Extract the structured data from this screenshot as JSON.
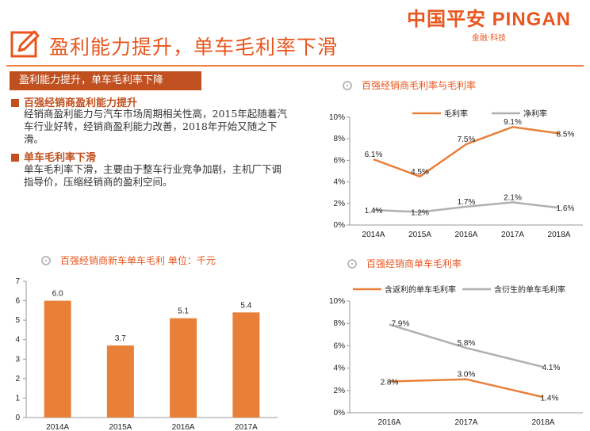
{
  "brand": {
    "logo_text": "中国平安 PINGAN",
    "logo_sub": "金融·科技"
  },
  "page_title": "盈利能力提升，单车毛利率下滑",
  "section_banner": "盈利能力提升，单车毛利率下降",
  "bullets": [
    {
      "heading": "百强经销商盈利能力提升",
      "body": "经销商盈利能力与汽车市场周期相关性高，2015年起随着汽车行业好转，经销商盈利能力改善，2018年开始又随之下滑。"
    },
    {
      "heading": "单车毛利率下滑",
      "body": "单车毛利率下滑，主要由于整车行业竞争加剧，主机厂下调指导价，压缩经销商的盈利空间。"
    }
  ],
  "colors": {
    "accent": "#e8561e",
    "orange_series": "#e8803a",
    "gray_series": "#b0b0b0",
    "bar": "#e8803a",
    "banner": "#c0501f"
  },
  "chart_data": [
    {
      "type": "line",
      "title": "百强经销商毛利率与毛利率",
      "categories": [
        "2014A",
        "2015A",
        "2016A",
        "2017A",
        "2018A"
      ],
      "ylim": [
        0,
        10
      ],
      "y_ticks": [
        "0%",
        "2%",
        "4%",
        "6%",
        "8%",
        "10%"
      ],
      "legend_position": "top",
      "series": [
        {
          "name": "毛利率",
          "values": [
            6.1,
            4.5,
            7.5,
            9.1,
            8.5
          ],
          "labels": [
            "6.1%",
            "4.5%",
            "7.5%",
            "9.1%",
            "8.5%"
          ]
        },
        {
          "name": "净利率",
          "values": [
            1.4,
            1.2,
            1.7,
            2.1,
            1.6
          ],
          "labels": [
            "1.4%",
            "1.2%",
            "1.7%",
            "2.1%",
            "1.6%"
          ]
        }
      ]
    },
    {
      "type": "bar",
      "title": "百强经销商新车单车毛利 单位：千元",
      "categories": [
        "2014A",
        "2015A",
        "2016A",
        "2017A"
      ],
      "values": [
        6.0,
        3.7,
        5.1,
        5.4
      ],
      "labels": [
        "6.0",
        "3.7",
        "5.1",
        "5.4"
      ],
      "ylim": [
        0,
        7
      ],
      "y_ticks": [
        "0",
        "1",
        "2",
        "3",
        "4",
        "5",
        "6",
        "7"
      ]
    },
    {
      "type": "line",
      "title": "百强经销商单车毛利率",
      "categories": [
        "2016A",
        "2017A",
        "2018A"
      ],
      "ylim": [
        0,
        10
      ],
      "y_ticks": [
        "0%",
        "2%",
        "4%",
        "6%",
        "8%",
        "10%"
      ],
      "legend_position": "top",
      "series": [
        {
          "name": "含返利的单车毛利率",
          "values": [
            2.8,
            3.0,
            1.4
          ],
          "labels": [
            "2.8%",
            "3.0%",
            "1.4%"
          ]
        },
        {
          "name": "含衍生的单车毛利率",
          "values": [
            7.9,
            5.8,
            4.1
          ],
          "labels": [
            "7.9%",
            "5.8%",
            "4.1%"
          ]
        }
      ]
    }
  ]
}
